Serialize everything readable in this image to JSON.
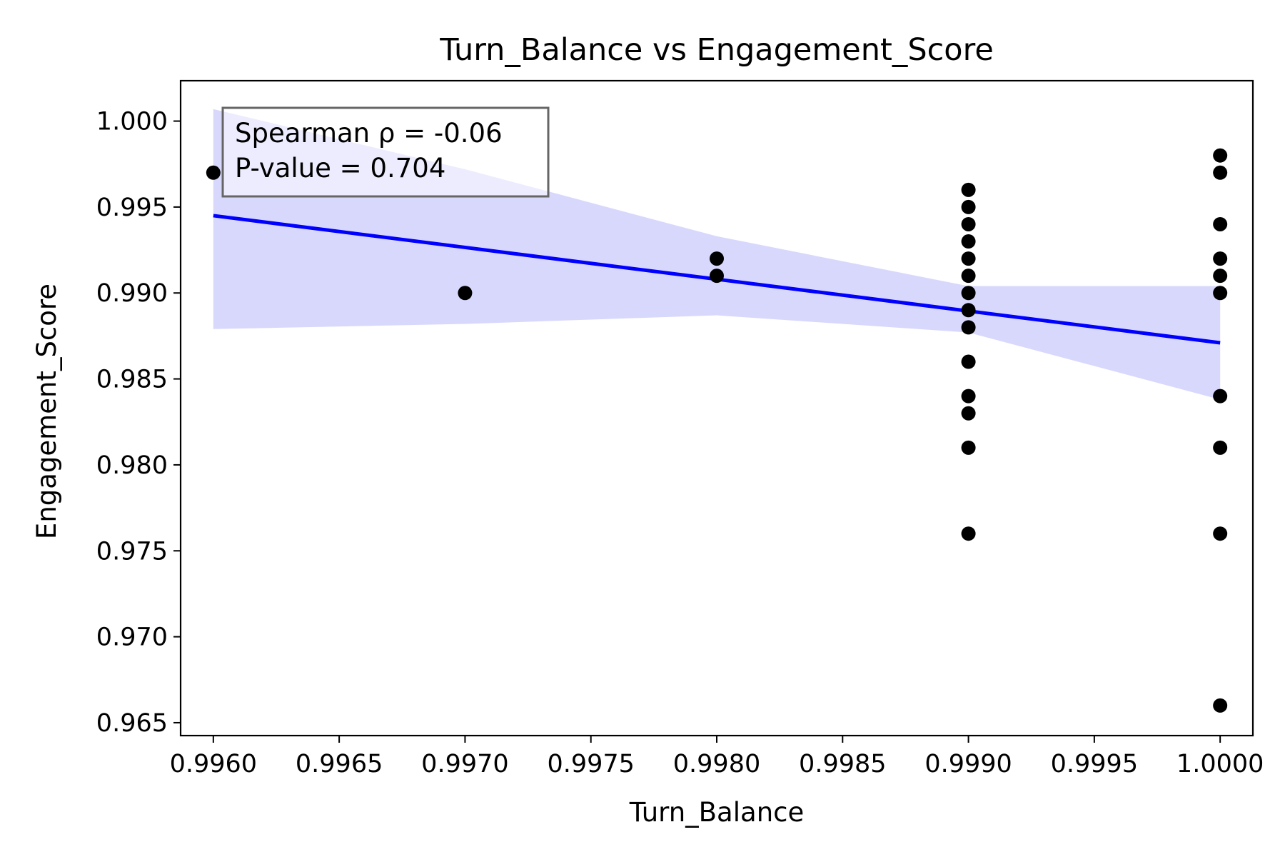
{
  "chart_data": {
    "type": "scatter",
    "title": "Turn_Balance vs Engagement_Score",
    "xlabel": "Turn_Balance",
    "ylabel": "Engagement_Score",
    "xlim": [
      0.99587,
      1.00013
    ],
    "ylim": [
      0.96425,
      1.00235
    ],
    "xticks": [
      0.996,
      0.9965,
      0.997,
      0.9975,
      0.998,
      0.9985,
      0.999,
      0.9995,
      1.0
    ],
    "xtick_labels": [
      "0.9960",
      "0.9965",
      "0.9970",
      "0.9975",
      "0.9980",
      "0.9985",
      "0.9990",
      "0.9995",
      "1.0000"
    ],
    "yticks": [
      0.965,
      0.97,
      0.975,
      0.98,
      0.985,
      0.99,
      0.995,
      1.0
    ],
    "ytick_labels": [
      "0.965",
      "0.970",
      "0.975",
      "0.980",
      "0.985",
      "0.990",
      "0.995",
      "1.000"
    ],
    "grid": false,
    "points": [
      {
        "x": 0.996,
        "y": 0.997
      },
      {
        "x": 0.997,
        "y": 0.99
      },
      {
        "x": 0.998,
        "y": 0.992
      },
      {
        "x": 0.998,
        "y": 0.991
      },
      {
        "x": 0.999,
        "y": 0.996
      },
      {
        "x": 0.999,
        "y": 0.995
      },
      {
        "x": 0.999,
        "y": 0.994
      },
      {
        "x": 0.999,
        "y": 0.993
      },
      {
        "x": 0.999,
        "y": 0.992
      },
      {
        "x": 0.999,
        "y": 0.991
      },
      {
        "x": 0.999,
        "y": 0.99
      },
      {
        "x": 0.999,
        "y": 0.989
      },
      {
        "x": 0.999,
        "y": 0.988
      },
      {
        "x": 0.999,
        "y": 0.986
      },
      {
        "x": 0.999,
        "y": 0.984
      },
      {
        "x": 0.999,
        "y": 0.983
      },
      {
        "x": 0.999,
        "y": 0.981
      },
      {
        "x": 0.999,
        "y": 0.976
      },
      {
        "x": 1.0,
        "y": 0.998
      },
      {
        "x": 1.0,
        "y": 0.997
      },
      {
        "x": 1.0,
        "y": 0.994
      },
      {
        "x": 1.0,
        "y": 0.992
      },
      {
        "x": 1.0,
        "y": 0.991
      },
      {
        "x": 1.0,
        "y": 0.99
      },
      {
        "x": 1.0,
        "y": 0.984
      },
      {
        "x": 1.0,
        "y": 0.981
      },
      {
        "x": 1.0,
        "y": 0.976
      },
      {
        "x": 1.0,
        "y": 0.966
      }
    ],
    "regression_line": [
      {
        "x": 0.996,
        "y": 0.9945
      },
      {
        "x": 1.0,
        "y": 0.9871
      }
    ],
    "confidence_band": [
      {
        "x": 0.996,
        "lo": 0.9879,
        "hi": 1.0007
      },
      {
        "x": 0.997,
        "lo": 0.9882,
        "hi": 0.9972
      },
      {
        "x": 0.998,
        "lo": 0.9887,
        "hi": 0.9933
      },
      {
        "x": 0.999,
        "lo": 0.9877,
        "hi": 0.9904
      },
      {
        "x": 1.0,
        "lo": 0.9838,
        "hi": 0.9904
      }
    ],
    "annotation_lines": [
      "Spearman ρ = -0.06",
      "P-value = 0.704"
    ],
    "annotation_position": "top-left",
    "point_color": "#000000",
    "line_color": "#0000ff",
    "band_color": "#d8d8fd"
  }
}
